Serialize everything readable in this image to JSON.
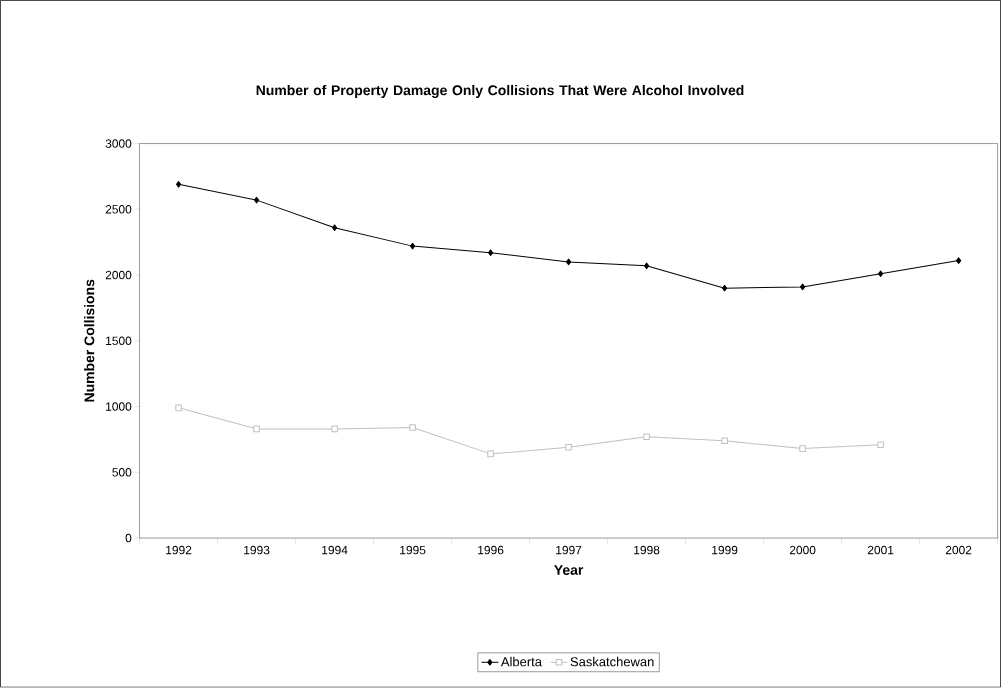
{
  "chart_data": {
    "type": "line",
    "title": "Number of Property Damage Only Collisions That Were Alcohol Involved",
    "xlabel": "Year",
    "ylabel": "Number Collisions",
    "categories": [
      "1992",
      "1993",
      "1994",
      "1995",
      "1996",
      "1997",
      "1998",
      "1999",
      "2000",
      "2001",
      "2002"
    ],
    "series": [
      {
        "name": "Alberta",
        "color": "#000000",
        "marker": "diamond",
        "values": [
          2690,
          2570,
          2360,
          2220,
          2170,
          2100,
          2070,
          1900,
          1910,
          2010,
          2110
        ]
      },
      {
        "name": "Saskatchewan",
        "color": "#c0c0c0",
        "marker": "square",
        "values": [
          990,
          830,
          830,
          840,
          640,
          690,
          770,
          740,
          680,
          710,
          null
        ]
      }
    ],
    "ylim": [
      0,
      3000
    ],
    "yticks": [
      0,
      500,
      1000,
      1500,
      2000,
      2500,
      3000
    ],
    "grid": false,
    "legend": "bottom",
    "line_style": "solid"
  }
}
